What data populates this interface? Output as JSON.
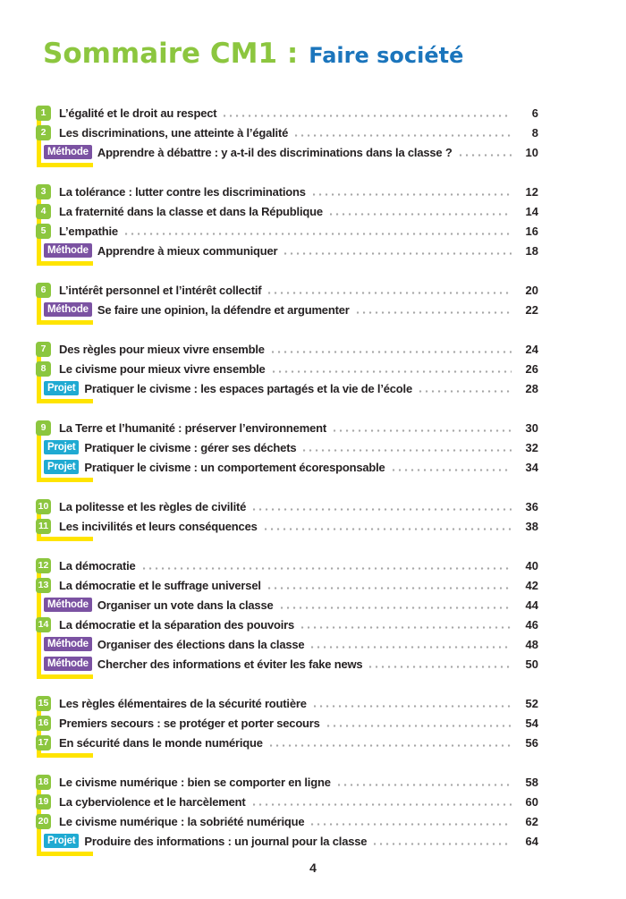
{
  "title": {
    "main": "Sommaire CM1 :",
    "sub": "Faire société"
  },
  "footer": {
    "page_number": "4"
  },
  "colors": {
    "badge_green": "#8CC63F",
    "title_green": "#8CC63F",
    "title_blue": "#1B75BC",
    "methode_purple": "#7B52A2",
    "projet_cyan": "#1FAAD2",
    "bracket_yellow": "#FFE400",
    "text_dark": "#262223",
    "leader_gray": "#A6A6A6"
  },
  "toc": {
    "groups": [
      {
        "rows": [
          {
            "type": "lesson",
            "num": "1",
            "label": "L’égalité et le droit au respect",
            "page": "6"
          },
          {
            "type": "lesson",
            "num": "2",
            "label": "Les discriminations, une atteinte à l’égalité",
            "page": "8"
          },
          {
            "type": "methode",
            "badge": "Méthode",
            "label": "Apprendre à débattre : y a-t-il des discriminations dans la classe ?",
            "page": "10"
          }
        ]
      },
      {
        "rows": [
          {
            "type": "lesson",
            "num": "3",
            "label": "La tolérance : lutter contre les discriminations",
            "page": "12"
          },
          {
            "type": "lesson",
            "num": "4",
            "label": "La fraternité dans la classe et dans la République",
            "page": "14"
          },
          {
            "type": "lesson",
            "num": "5",
            "label": "L’empathie",
            "page": "16"
          },
          {
            "type": "methode",
            "badge": "Méthode",
            "label": "Apprendre à mieux communiquer",
            "page": "18"
          }
        ]
      },
      {
        "rows": [
          {
            "type": "lesson",
            "num": "6",
            "label": "L’intérêt personnel et l’intérêt collectif",
            "page": "20"
          },
          {
            "type": "methode",
            "badge": "Méthode",
            "label": "Se faire une opinion, la défendre et argumenter",
            "page": "22"
          }
        ]
      },
      {
        "rows": [
          {
            "type": "lesson",
            "num": "7",
            "label": "Des règles pour mieux vivre ensemble",
            "page": "24"
          },
          {
            "type": "lesson",
            "num": "8",
            "label": "Le civisme pour mieux vivre ensemble",
            "page": "26"
          },
          {
            "type": "projet",
            "badge": "Projet",
            "label": "Pratiquer le civisme : les espaces partagés et la vie de l’école",
            "page": "28"
          }
        ]
      },
      {
        "rows": [
          {
            "type": "lesson",
            "num": "9",
            "label": "La Terre et l’humanité : préserver l’environnement",
            "page": "30"
          },
          {
            "type": "projet",
            "badge": "Projet",
            "label": "Pratiquer le civisme : gérer ses déchets",
            "page": "32"
          },
          {
            "type": "projet",
            "badge": "Projet",
            "label": "Pratiquer le civisme : un comportement écoresponsable",
            "page": "34"
          }
        ]
      },
      {
        "rows": [
          {
            "type": "lesson",
            "num": "10",
            "label": "La politesse et les règles de civilité",
            "page": "36"
          },
          {
            "type": "lesson",
            "num": "11",
            "label": "Les incivilités et leurs conséquences",
            "page": "38"
          }
        ]
      },
      {
        "rows": [
          {
            "type": "lesson",
            "num": "12",
            "label": "La démocratie",
            "page": "40"
          },
          {
            "type": "lesson",
            "num": "13",
            "label": "La démocratie et le suffrage universel",
            "page": "42"
          },
          {
            "type": "methode",
            "badge": "Méthode",
            "label": "Organiser un vote dans la classe",
            "page": "44"
          },
          {
            "type": "lesson",
            "num": "14",
            "label": "La démocratie et la séparation des pouvoirs",
            "page": "46"
          },
          {
            "type": "methode",
            "badge": "Méthode",
            "label": "Organiser des élections dans la classe",
            "page": "48"
          },
          {
            "type": "methode",
            "badge": "Méthode",
            "label": "Chercher des informations et éviter les fake news",
            "page": "50"
          }
        ]
      },
      {
        "rows": [
          {
            "type": "lesson",
            "num": "15",
            "label": "Les règles élémentaires de la sécurité routière",
            "page": "52"
          },
          {
            "type": "lesson",
            "num": "16",
            "label": "Premiers secours : se protéger et porter secours",
            "page": "54"
          },
          {
            "type": "lesson",
            "num": "17",
            "label": "En sécurité dans le monde numérique",
            "page": "56"
          }
        ]
      },
      {
        "rows": [
          {
            "type": "lesson",
            "num": "18",
            "label": "Le civisme numérique : bien se comporter en ligne",
            "page": "58"
          },
          {
            "type": "lesson",
            "num": "19",
            "label": "La cyberviolence et le harcèlement",
            "page": "60"
          },
          {
            "type": "lesson",
            "num": "20",
            "label": "Le civisme numérique : la sobriété numérique",
            "page": "62"
          },
          {
            "type": "projet",
            "badge": "Projet",
            "label": "Produire des informations : un journal pour la classe",
            "page": "64"
          }
        ]
      }
    ]
  }
}
